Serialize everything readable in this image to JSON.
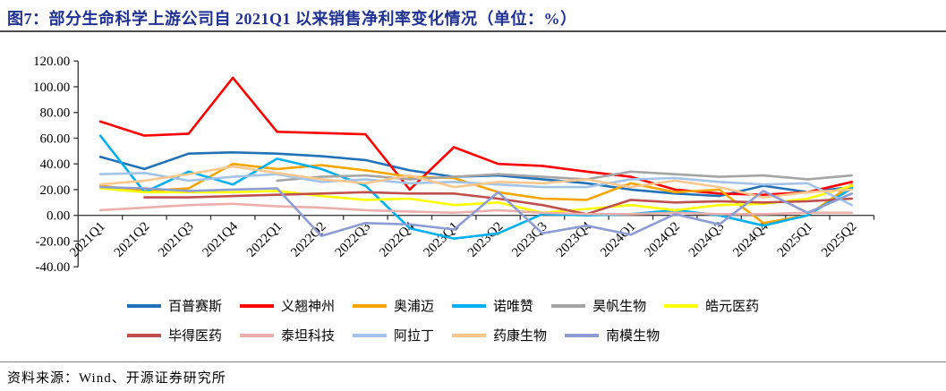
{
  "figure": {
    "title": "图7：部分生命科学上游公司自 2021Q1 以来销售净利率变化情况（单位：%）",
    "source": "资料来源：Wind、开源证券研究所"
  },
  "colors": {
    "title_navy": "#1F3192",
    "axis": "#404040"
  },
  "chart_data": {
    "type": "line",
    "title": "部分生命科学上游公司自 2021Q1 以来销售净利率变化情况（单位：%）",
    "xlabel": "",
    "ylabel": "",
    "ylim": [
      -40,
      120
    ],
    "y_tick_step": 20,
    "y_tick_labels": [
      "120.00",
      "100.00",
      "80.00",
      "60.00",
      "40.00",
      "20.00",
      "0.00",
      "-20.00",
      "-40.00"
    ],
    "grid": false,
    "legend_position": "bottom",
    "legend_rows": [
      6,
      5
    ],
    "categories": [
      "2021Q1",
      "2021Q2",
      "2021Q3",
      "2021Q4",
      "2022Q1",
      "2022Q2",
      "2022Q3",
      "2022Q4",
      "2023Q1",
      "2023Q2",
      "2023Q3",
      "2023Q4",
      "2024Q1",
      "2024Q2",
      "2024Q3",
      "2024Q4",
      "2025Q1",
      "2025Q2"
    ],
    "series": [
      {
        "name": "百普赛斯",
        "color": "#2272B8",
        "values": [
          45.5,
          36,
          48,
          49,
          48,
          46,
          43,
          35,
          30,
          31,
          28,
          25,
          20,
          17,
          15,
          23,
          18,
          22
        ]
      },
      {
        "name": "义翘神州",
        "color": "#FF0000",
        "values": [
          73,
          62,
          63.5,
          107,
          65,
          64,
          63,
          20,
          53,
          40,
          38.5,
          34,
          30,
          20,
          17,
          16,
          18,
          26
        ]
      },
      {
        "name": "奥浦迈",
        "color": "#F7A600",
        "values": [
          23,
          19,
          21,
          40,
          36,
          39,
          35,
          30,
          29,
          18,
          13,
          12,
          25,
          18,
          20,
          -6,
          0,
          24
        ]
      },
      {
        "name": "诺唯赞",
        "color": "#00B0F0",
        "values": [
          62,
          18,
          34,
          24,
          44,
          36,
          23,
          -10,
          -18,
          -14,
          1,
          0,
          1,
          4,
          0,
          -8,
          0,
          21
        ]
      },
      {
        "name": "昊帆生物",
        "color": "#A5A5A5",
        "values": [
          null,
          null,
          null,
          null,
          27,
          30,
          31,
          28,
          30,
          32,
          30,
          28,
          34,
          32,
          30,
          31,
          28,
          31
        ]
      },
      {
        "name": "皓元医药",
        "color": "#FFFF00",
        "values": [
          21,
          18,
          18,
          18,
          19,
          15,
          12,
          13,
          8,
          10,
          2,
          5,
          8,
          4,
          8,
          9,
          13,
          23
        ]
      },
      {
        "name": "毕得医药",
        "color": "#C0504D",
        "values": [
          null,
          14,
          14,
          15,
          16,
          17,
          18,
          17,
          17,
          13,
          8,
          1,
          12,
          10,
          11,
          10,
          11,
          13
        ]
      },
      {
        "name": "泰坦科技",
        "color": "#EBAFAC",
        "values": [
          4,
          6,
          8,
          9,
          7,
          6,
          4,
          3,
          2,
          4,
          2,
          1,
          1,
          2,
          1,
          1,
          2,
          2
        ]
      },
      {
        "name": "阿拉丁",
        "color": "#A3C4E8",
        "values": [
          32,
          33,
          27,
          30,
          32,
          26,
          28,
          25,
          26,
          24,
          22,
          22,
          28,
          29,
          26,
          24,
          25,
          8
        ]
      },
      {
        "name": "药康生物",
        "color": "#FAC78F",
        "values": [
          24,
          27,
          32,
          38,
          33,
          28,
          25,
          31,
          22,
          26,
          25,
          28,
          22,
          27,
          22,
          14,
          18,
          20
        ]
      },
      {
        "name": "南模生物",
        "color": "#8D9DD4",
        "values": [
          22,
          21,
          19,
          20,
          21,
          -16,
          -6,
          -7,
          -11,
          18,
          -14,
          -8,
          -15,
          1,
          -7,
          19,
          2,
          17
        ]
      }
    ]
  }
}
